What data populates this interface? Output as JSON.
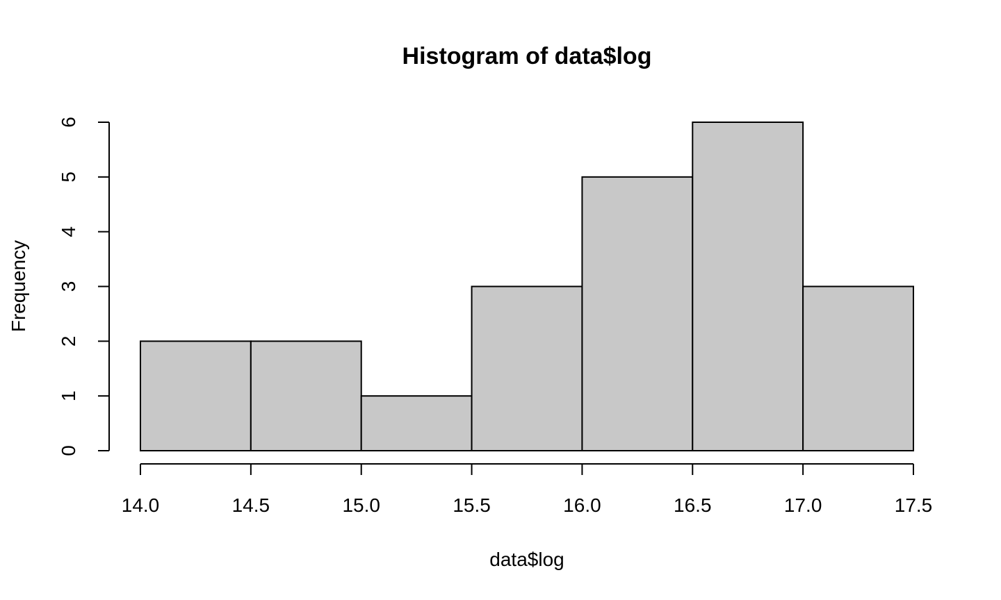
{
  "chart_data": {
    "type": "bar",
    "title": "Histogram of data$log",
    "xlabel": "data$log",
    "ylabel": "Frequency",
    "bins": [
      {
        "start": 14.0,
        "end": 14.5,
        "count": 2
      },
      {
        "start": 14.5,
        "end": 15.0,
        "count": 2
      },
      {
        "start": 15.0,
        "end": 15.5,
        "count": 1
      },
      {
        "start": 15.5,
        "end": 16.0,
        "count": 3
      },
      {
        "start": 16.0,
        "end": 16.5,
        "count": 5
      },
      {
        "start": 16.5,
        "end": 17.0,
        "count": 6
      },
      {
        "start": 17.0,
        "end": 17.5,
        "count": 3
      }
    ],
    "xlim": [
      14.0,
      17.5
    ],
    "ylim": [
      0,
      6
    ],
    "x_ticks": [
      "14.0",
      "14.5",
      "15.0",
      "15.5",
      "16.0",
      "16.5",
      "17.0",
      "17.5"
    ],
    "y_ticks": [
      "0",
      "1",
      "2",
      "3",
      "4",
      "5",
      "6"
    ],
    "bar_color": "#c8c8c8",
    "grid": false
  }
}
